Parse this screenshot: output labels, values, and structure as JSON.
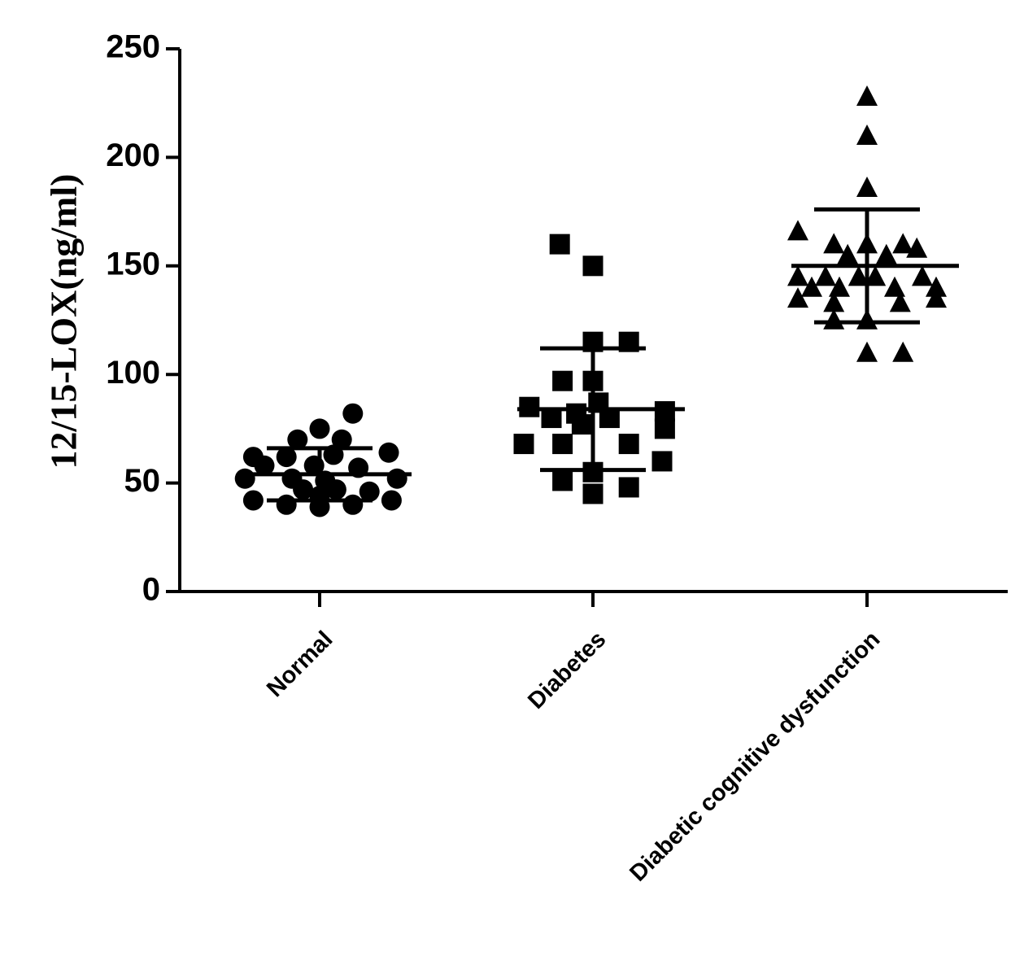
{
  "chart_data": {
    "type": "scatter",
    "title": "",
    "xlabel": "",
    "ylabel": "12/15-LOX(ng/ml)",
    "ylim": [
      0,
      250
    ],
    "yticks": [
      0,
      50,
      100,
      150,
      200,
      250
    ],
    "grid": false,
    "legend": "none",
    "color": "#000000",
    "categories": [
      "Normal",
      "Diabetes",
      "Diabetic cognitive dysfunction"
    ],
    "groups": [
      {
        "category": "Normal",
        "marker": "circle",
        "mean": 54,
        "sd": 12,
        "points": [
          {
            "dx": 0.0,
            "y": 75
          },
          {
            "dx": -0.08,
            "y": 70
          },
          {
            "dx": 0.08,
            "y": 70
          },
          {
            "dx": 0.12,
            "y": 82
          },
          {
            "dx": -0.24,
            "y": 62
          },
          {
            "dx": -0.12,
            "y": 62
          },
          {
            "dx": 0.05,
            "y": 63
          },
          {
            "dx": 0.25,
            "y": 64
          },
          {
            "dx": -0.2,
            "y": 58
          },
          {
            "dx": -0.02,
            "y": 58
          },
          {
            "dx": 0.14,
            "y": 57
          },
          {
            "dx": -0.27,
            "y": 52
          },
          {
            "dx": -0.1,
            "y": 52
          },
          {
            "dx": 0.02,
            "y": 51
          },
          {
            "dx": 0.28,
            "y": 52
          },
          {
            "dx": -0.06,
            "y": 47
          },
          {
            "dx": 0.06,
            "y": 47
          },
          {
            "dx": 0.18,
            "y": 46
          },
          {
            "dx": -0.24,
            "y": 42
          },
          {
            "dx": 0.0,
            "y": 44
          },
          {
            "dx": 0.26,
            "y": 42
          },
          {
            "dx": -0.12,
            "y": 40
          },
          {
            "dx": 0.0,
            "y": 39
          },
          {
            "dx": 0.12,
            "y": 40
          }
        ]
      },
      {
        "category": "Diabetes",
        "marker": "square",
        "mean": 84,
        "sd": 28,
        "points": [
          {
            "dx": -0.12,
            "y": 160
          },
          {
            "dx": 0.0,
            "y": 150
          },
          {
            "dx": 0.0,
            "y": 115
          },
          {
            "dx": 0.13,
            "y": 115
          },
          {
            "dx": -0.11,
            "y": 97
          },
          {
            "dx": 0.0,
            "y": 97
          },
          {
            "dx": 0.02,
            "y": 87
          },
          {
            "dx": -0.23,
            "y": 85
          },
          {
            "dx": 0.26,
            "y": 83
          },
          {
            "dx": -0.15,
            "y": 80
          },
          {
            "dx": -0.06,
            "y": 82
          },
          {
            "dx": 0.06,
            "y": 80
          },
          {
            "dx": -0.04,
            "y": 77
          },
          {
            "dx": 0.26,
            "y": 75
          },
          {
            "dx": -0.25,
            "y": 68
          },
          {
            "dx": -0.11,
            "y": 68
          },
          {
            "dx": 0.13,
            "y": 68
          },
          {
            "dx": 0.25,
            "y": 60
          },
          {
            "dx": 0.0,
            "y": 55
          },
          {
            "dx": -0.11,
            "y": 51
          },
          {
            "dx": 0.13,
            "y": 48
          },
          {
            "dx": 0.0,
            "y": 45
          }
        ]
      },
      {
        "category": "Diabetic cognitive dysfunction",
        "marker": "triangle",
        "mean": 150,
        "sd": 26,
        "points": [
          {
            "dx": 0.0,
            "y": 228
          },
          {
            "dx": 0.0,
            "y": 210
          },
          {
            "dx": 0.0,
            "y": 186
          },
          {
            "dx": -0.25,
            "y": 166
          },
          {
            "dx": -0.12,
            "y": 160
          },
          {
            "dx": 0.0,
            "y": 160
          },
          {
            "dx": 0.13,
            "y": 160
          },
          {
            "dx": 0.18,
            "y": 158
          },
          {
            "dx": -0.07,
            "y": 155
          },
          {
            "dx": 0.07,
            "y": 155
          },
          {
            "dx": -0.25,
            "y": 145
          },
          {
            "dx": -0.15,
            "y": 145
          },
          {
            "dx": -0.03,
            "y": 145
          },
          {
            "dx": 0.03,
            "y": 145
          },
          {
            "dx": 0.2,
            "y": 145
          },
          {
            "dx": -0.2,
            "y": 140
          },
          {
            "dx": -0.1,
            "y": 140
          },
          {
            "dx": 0.1,
            "y": 140
          },
          {
            "dx": 0.25,
            "y": 140
          },
          {
            "dx": -0.25,
            "y": 135
          },
          {
            "dx": 0.25,
            "y": 135
          },
          {
            "dx": -0.12,
            "y": 133
          },
          {
            "dx": 0.12,
            "y": 133
          },
          {
            "dx": -0.12,
            "y": 125
          },
          {
            "dx": 0.0,
            "y": 125
          },
          {
            "dx": 0.0,
            "y": 110
          },
          {
            "dx": 0.13,
            "y": 110
          }
        ]
      }
    ]
  }
}
